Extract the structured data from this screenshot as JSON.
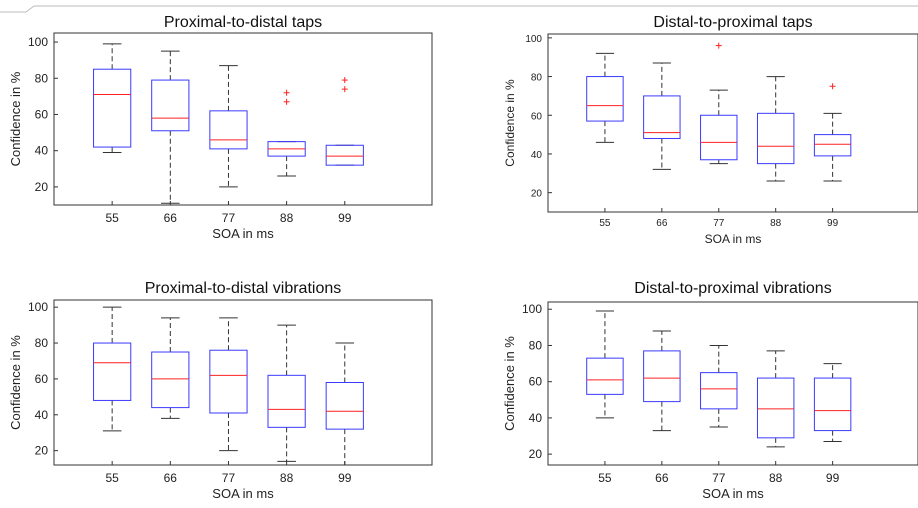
{
  "chart_data": [
    {
      "type": "box",
      "title": "Proximal-to-distal taps",
      "xlabel": "SOA in ms",
      "ylabel": "Confidence in %",
      "categories": [
        "55",
        "66",
        "77",
        "88",
        "99"
      ],
      "ylim": [
        10,
        105
      ],
      "yticks": [
        20,
        40,
        60,
        80,
        100
      ],
      "boxes": [
        {
          "whisker_low": 39,
          "q1": 42,
          "median": 71,
          "q3": 85,
          "whisker_high": 99,
          "outliers": []
        },
        {
          "whisker_low": 11,
          "q1": 51,
          "median": 58,
          "q3": 79,
          "whisker_high": 95,
          "outliers": []
        },
        {
          "whisker_low": 20,
          "q1": 41,
          "median": 46,
          "q3": 62,
          "whisker_high": 87,
          "outliers": []
        },
        {
          "whisker_low": 26,
          "q1": 37,
          "median": 41,
          "q3": 45,
          "whisker_high": 45,
          "outliers": [
            67,
            72
          ]
        },
        {
          "whisker_low": 32,
          "q1": 32,
          "median": 37,
          "q3": 43,
          "whisker_high": 43,
          "outliers": [
            74,
            79
          ]
        }
      ]
    },
    {
      "type": "box",
      "title": "Distal-to-proximal taps",
      "xlabel": "SOA in ms",
      "ylabel": "Confidence in %",
      "categories": [
        "55",
        "66",
        "77",
        "88",
        "99"
      ],
      "ylim": [
        10,
        102
      ],
      "yticks": [
        20,
        40,
        60,
        80,
        100
      ],
      "boxes": [
        {
          "whisker_low": 46,
          "q1": 57,
          "median": 65,
          "q3": 80,
          "whisker_high": 92,
          "outliers": []
        },
        {
          "whisker_low": 32,
          "q1": 48,
          "median": 51,
          "q3": 70,
          "whisker_high": 87,
          "outliers": []
        },
        {
          "whisker_low": 35,
          "q1": 37,
          "median": 46,
          "q3": 60,
          "whisker_high": 73,
          "outliers": [
            96
          ]
        },
        {
          "whisker_low": 26,
          "q1": 35,
          "median": 44,
          "q3": 61,
          "whisker_high": 80,
          "outliers": []
        },
        {
          "whisker_low": 26,
          "q1": 39,
          "median": 45,
          "q3": 50,
          "whisker_high": 61,
          "outliers": [
            75
          ]
        }
      ]
    },
    {
      "type": "box",
      "title": "Proximal-to-distal vibrations",
      "xlabel": "SOA in ms",
      "ylabel": "Confidence in %",
      "categories": [
        "55",
        "66",
        "77",
        "88",
        "99"
      ],
      "ylim": [
        12,
        104
      ],
      "yticks": [
        20,
        40,
        60,
        80,
        100
      ],
      "boxes": [
        {
          "whisker_low": 31,
          "q1": 48,
          "median": 69,
          "q3": 80,
          "whisker_high": 100,
          "outliers": []
        },
        {
          "whisker_low": 38,
          "q1": 44,
          "median": 60,
          "q3": 75,
          "whisker_high": 94,
          "outliers": []
        },
        {
          "whisker_low": 20,
          "q1": 41,
          "median": 62,
          "q3": 76,
          "whisker_high": 94,
          "outliers": []
        },
        {
          "whisker_low": 14,
          "q1": 33,
          "median": 43,
          "q3": 62,
          "whisker_high": 90,
          "outliers": []
        },
        {
          "whisker_low": 12,
          "q1": 32,
          "median": 42,
          "q3": 58,
          "whisker_high": 80,
          "outliers": []
        }
      ]
    },
    {
      "type": "box",
      "title": "Distal-to-proximal vibrations",
      "xlabel": "SOA in ms",
      "ylabel": "Confidence in %",
      "categories": [
        "55",
        "66",
        "77",
        "88",
        "99"
      ],
      "ylim": [
        14,
        104
      ],
      "yticks": [
        20,
        40,
        60,
        80,
        100
      ],
      "boxes": [
        {
          "whisker_low": 40,
          "q1": 53,
          "median": 61,
          "q3": 73,
          "whisker_high": 99,
          "outliers": []
        },
        {
          "whisker_low": 33,
          "q1": 49,
          "median": 62,
          "q3": 77,
          "whisker_high": 88,
          "outliers": []
        },
        {
          "whisker_low": 35,
          "q1": 45,
          "median": 56,
          "q3": 65,
          "whisker_high": 80,
          "outliers": []
        },
        {
          "whisker_low": 24,
          "q1": 29,
          "median": 45,
          "q3": 62,
          "whisker_high": 77,
          "outliers": []
        },
        {
          "whisker_low": 27,
          "q1": 33,
          "median": 44,
          "q3": 62,
          "whisker_high": 70,
          "outliers": []
        }
      ]
    }
  ],
  "colors": {
    "box": "#3a3aff",
    "median": "#ff2020",
    "whisker": "#333333",
    "outlier": "#ff2020",
    "axes": "#333333"
  }
}
